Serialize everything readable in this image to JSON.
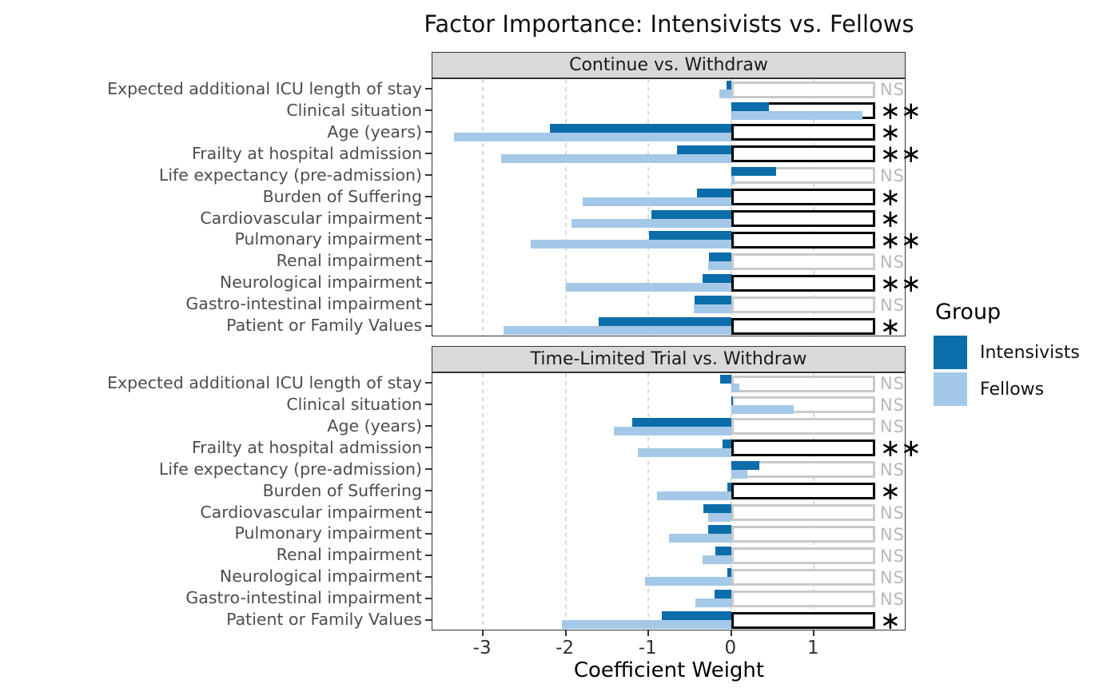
{
  "title": "Factor Importance: Intensivists vs. Fellows",
  "colors": {
    "intensivists": "#0b6da9",
    "fellows": "#a4c8e8",
    "sig_box_border": "#000000",
    "ns_box_border": "#c9c9c9",
    "ns_text": "#b9b9b9",
    "sig_text": "#000000",
    "strip_bg": "#d9d9d9",
    "gridline": "#dadada",
    "category_text": "#4d4d4d"
  },
  "legend": {
    "title": "Group",
    "items": [
      {
        "label": "Intensivists",
        "color_key": "intensivists"
      },
      {
        "label": "Fellows",
        "color_key": "fellows"
      }
    ]
  },
  "chart_data": {
    "type": "bar",
    "orientation": "horizontal",
    "title": "Factor Importance: Intensivists vs. Fellows",
    "xlabel": "Coefficient Weight",
    "x_ticks": [
      -3,
      -2,
      -1,
      0,
      1
    ],
    "xlim": [
      -3.61,
      2.09
    ],
    "grid": "dashed-vertical",
    "legend_position": "right",
    "significance_box_extent": [
      0,
      1.74
    ],
    "categories": [
      "Expected additional ICU length of stay",
      "Clinical situation",
      "Age (years)",
      "Frailty at hospital admission",
      "Life expectancy (pre-admission)",
      "Burden of Suffering",
      "Cardiovascular impairment",
      "Pulmonary impairment",
      "Renal impairment",
      "Neurological impairment",
      "Gastro-intestinal impairment",
      "Patient or Family Values"
    ],
    "facets": [
      {
        "title": "Continue vs. Withdraw",
        "rows": [
          {
            "intensivists": -0.06,
            "fellows": -0.14,
            "sig": "NS"
          },
          {
            "intensivists": 0.46,
            "fellows": 1.59,
            "sig": "**"
          },
          {
            "intensivists": -2.19,
            "fellows": -3.35,
            "sig": "*"
          },
          {
            "intensivists": -0.65,
            "fellows": -2.78,
            "sig": "**"
          },
          {
            "intensivists": 0.54,
            "fellows": 0.04,
            "sig": "NS"
          },
          {
            "intensivists": -0.41,
            "fellows": -1.79,
            "sig": "*"
          },
          {
            "intensivists": -0.96,
            "fellows": -1.93,
            "sig": "*"
          },
          {
            "intensivists": -0.99,
            "fellows": -2.42,
            "sig": "**"
          },
          {
            "intensivists": -0.27,
            "fellows": -0.28,
            "sig": "NS"
          },
          {
            "intensivists": -0.35,
            "fellows": -2.0,
            "sig": "**"
          },
          {
            "intensivists": -0.44,
            "fellows": -0.45,
            "sig": "NS"
          },
          {
            "intensivists": -1.6,
            "fellows": -2.75,
            "sig": "*"
          }
        ]
      },
      {
        "title": "Time-Limited Trial vs. Withdraw",
        "rows": [
          {
            "intensivists": -0.13,
            "fellows": 0.1,
            "sig": "NS"
          },
          {
            "intensivists": 0.02,
            "fellows": 0.76,
            "sig": "NS"
          },
          {
            "intensivists": -1.2,
            "fellows": -1.42,
            "sig": "NS"
          },
          {
            "intensivists": -0.1,
            "fellows": -1.13,
            "sig": "**"
          },
          {
            "intensivists": 0.34,
            "fellows": 0.2,
            "sig": "NS"
          },
          {
            "intensivists": -0.05,
            "fellows": -0.9,
            "sig": "*"
          },
          {
            "intensivists": -0.34,
            "fellows": -0.28,
            "sig": "NS"
          },
          {
            "intensivists": -0.28,
            "fellows": -0.75,
            "sig": "NS"
          },
          {
            "intensivists": -0.19,
            "fellows": -0.35,
            "sig": "NS"
          },
          {
            "intensivists": -0.05,
            "fellows": -1.04,
            "sig": "NS"
          },
          {
            "intensivists": -0.2,
            "fellows": -0.43,
            "sig": "NS"
          },
          {
            "intensivists": -0.84,
            "fellows": -2.05,
            "sig": "*"
          }
        ]
      }
    ]
  }
}
